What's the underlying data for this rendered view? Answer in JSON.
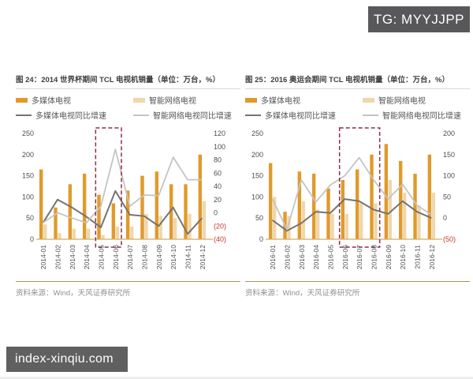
{
  "watermarks": {
    "top": "TG: MYYJJPP",
    "bottom": "index-xinqiu.com"
  },
  "chart_data": [
    {
      "type": "bar",
      "combo": "bar+line",
      "title": "图 24：2014 世界杯期间 TCL 电视机销量（单位：万台，%）",
      "categories": [
        "2014-01",
        "2014-02",
        "2014-03",
        "2014-04",
        "2014-05",
        "2014-06",
        "2014-07",
        "2014-08",
        "2014-09",
        "2014-10",
        "2014-11",
        "2014-12"
      ],
      "series": [
        {
          "name": "多媒体电视",
          "type": "bar",
          "axis": "left",
          "color": "#e09a2b",
          "values": [
            165,
            75,
            130,
            155,
            105,
            85,
            115,
            150,
            160,
            130,
            130,
            200
          ]
        },
        {
          "name": "智能网络电视",
          "type": "bar",
          "axis": "left",
          "color": "#efd7ac",
          "values": [
            35,
            15,
            25,
            25,
            10,
            30,
            30,
            60,
            55,
            50,
            60,
            90
          ]
        },
        {
          "name": "多媒体电视同比增速",
          "type": "line",
          "axis": "right",
          "color": "#767472",
          "values": [
            -15,
            20,
            8,
            -6,
            -22,
            33,
            -3,
            -5,
            -20,
            8,
            -32,
            -8
          ]
        },
        {
          "name": "智能网络电视同比增速",
          "type": "line",
          "axis": "right",
          "color": "#c6c4c1",
          "values": [
            -15,
            0,
            -8,
            -15,
            10,
            96,
            10,
            27,
            26,
            84,
            50,
            50
          ]
        }
      ],
      "left_axis": {
        "min": 0,
        "max": 250,
        "step": 50
      },
      "right_axis": {
        "min": -40,
        "max": 120,
        "step": 20,
        "negative_format": "parentheses",
        "negative_color": "#c0392b"
      },
      "highlight": {
        "from": "2014-05",
        "to": "2014-06",
        "color": "#8e2d4a"
      },
      "grid": "off",
      "legend_position": "top",
      "source": "资料来源：Wind，天风证券研究所"
    },
    {
      "type": "bar",
      "combo": "bar+line",
      "title": "图 25：2016 奥运会期间 TCL 电视机销量（单位：万台，%）",
      "categories": [
        "2016-01",
        "2016-02",
        "2016-03",
        "2016-04",
        "2016-05",
        "2016-06",
        "2016-07",
        "2016-08",
        "2016-09",
        "2016-10",
        "2016-11",
        "2016-12"
      ],
      "series": [
        {
          "name": "多媒体电视",
          "type": "bar",
          "axis": "left",
          "color": "#e09a2b",
          "values": [
            180,
            65,
            160,
            155,
            120,
            140,
            165,
            200,
            225,
            185,
            155,
            200
          ]
        },
        {
          "name": "智能网络电视",
          "type": "bar",
          "axis": "left",
          "color": "#efd7ac",
          "values": [
            100,
            55,
            90,
            70,
            60,
            60,
            85,
            85,
            140,
            110,
            80,
            110
          ]
        },
        {
          "name": "多媒体电视同比增速",
          "type": "line",
          "axis": "right",
          "color": "#767472",
          "values": [
            -5,
            -30,
            -12,
            15,
            12,
            45,
            40,
            20,
            10,
            40,
            15,
            0
          ]
        },
        {
          "name": "智能网络电视同比增速",
          "type": "line",
          "axis": "right",
          "color": "#c6c4c1",
          "values": [
            45,
            -27,
            90,
            38,
            78,
            100,
            143,
            90,
            45,
            80,
            30,
            8
          ]
        }
      ],
      "left_axis": {
        "min": 0,
        "max": 250,
        "step": 50
      },
      "right_axis": {
        "min": -50,
        "max": 200,
        "step": 50,
        "negative_format": "parentheses",
        "negative_color": "#c0392b"
      },
      "highlight": {
        "from": "2016-06",
        "to": "2016-08",
        "color": "#8e2d4a"
      },
      "grid": "off",
      "legend_position": "top",
      "source": "资料来源：Wind，天风证券研究所"
    }
  ]
}
